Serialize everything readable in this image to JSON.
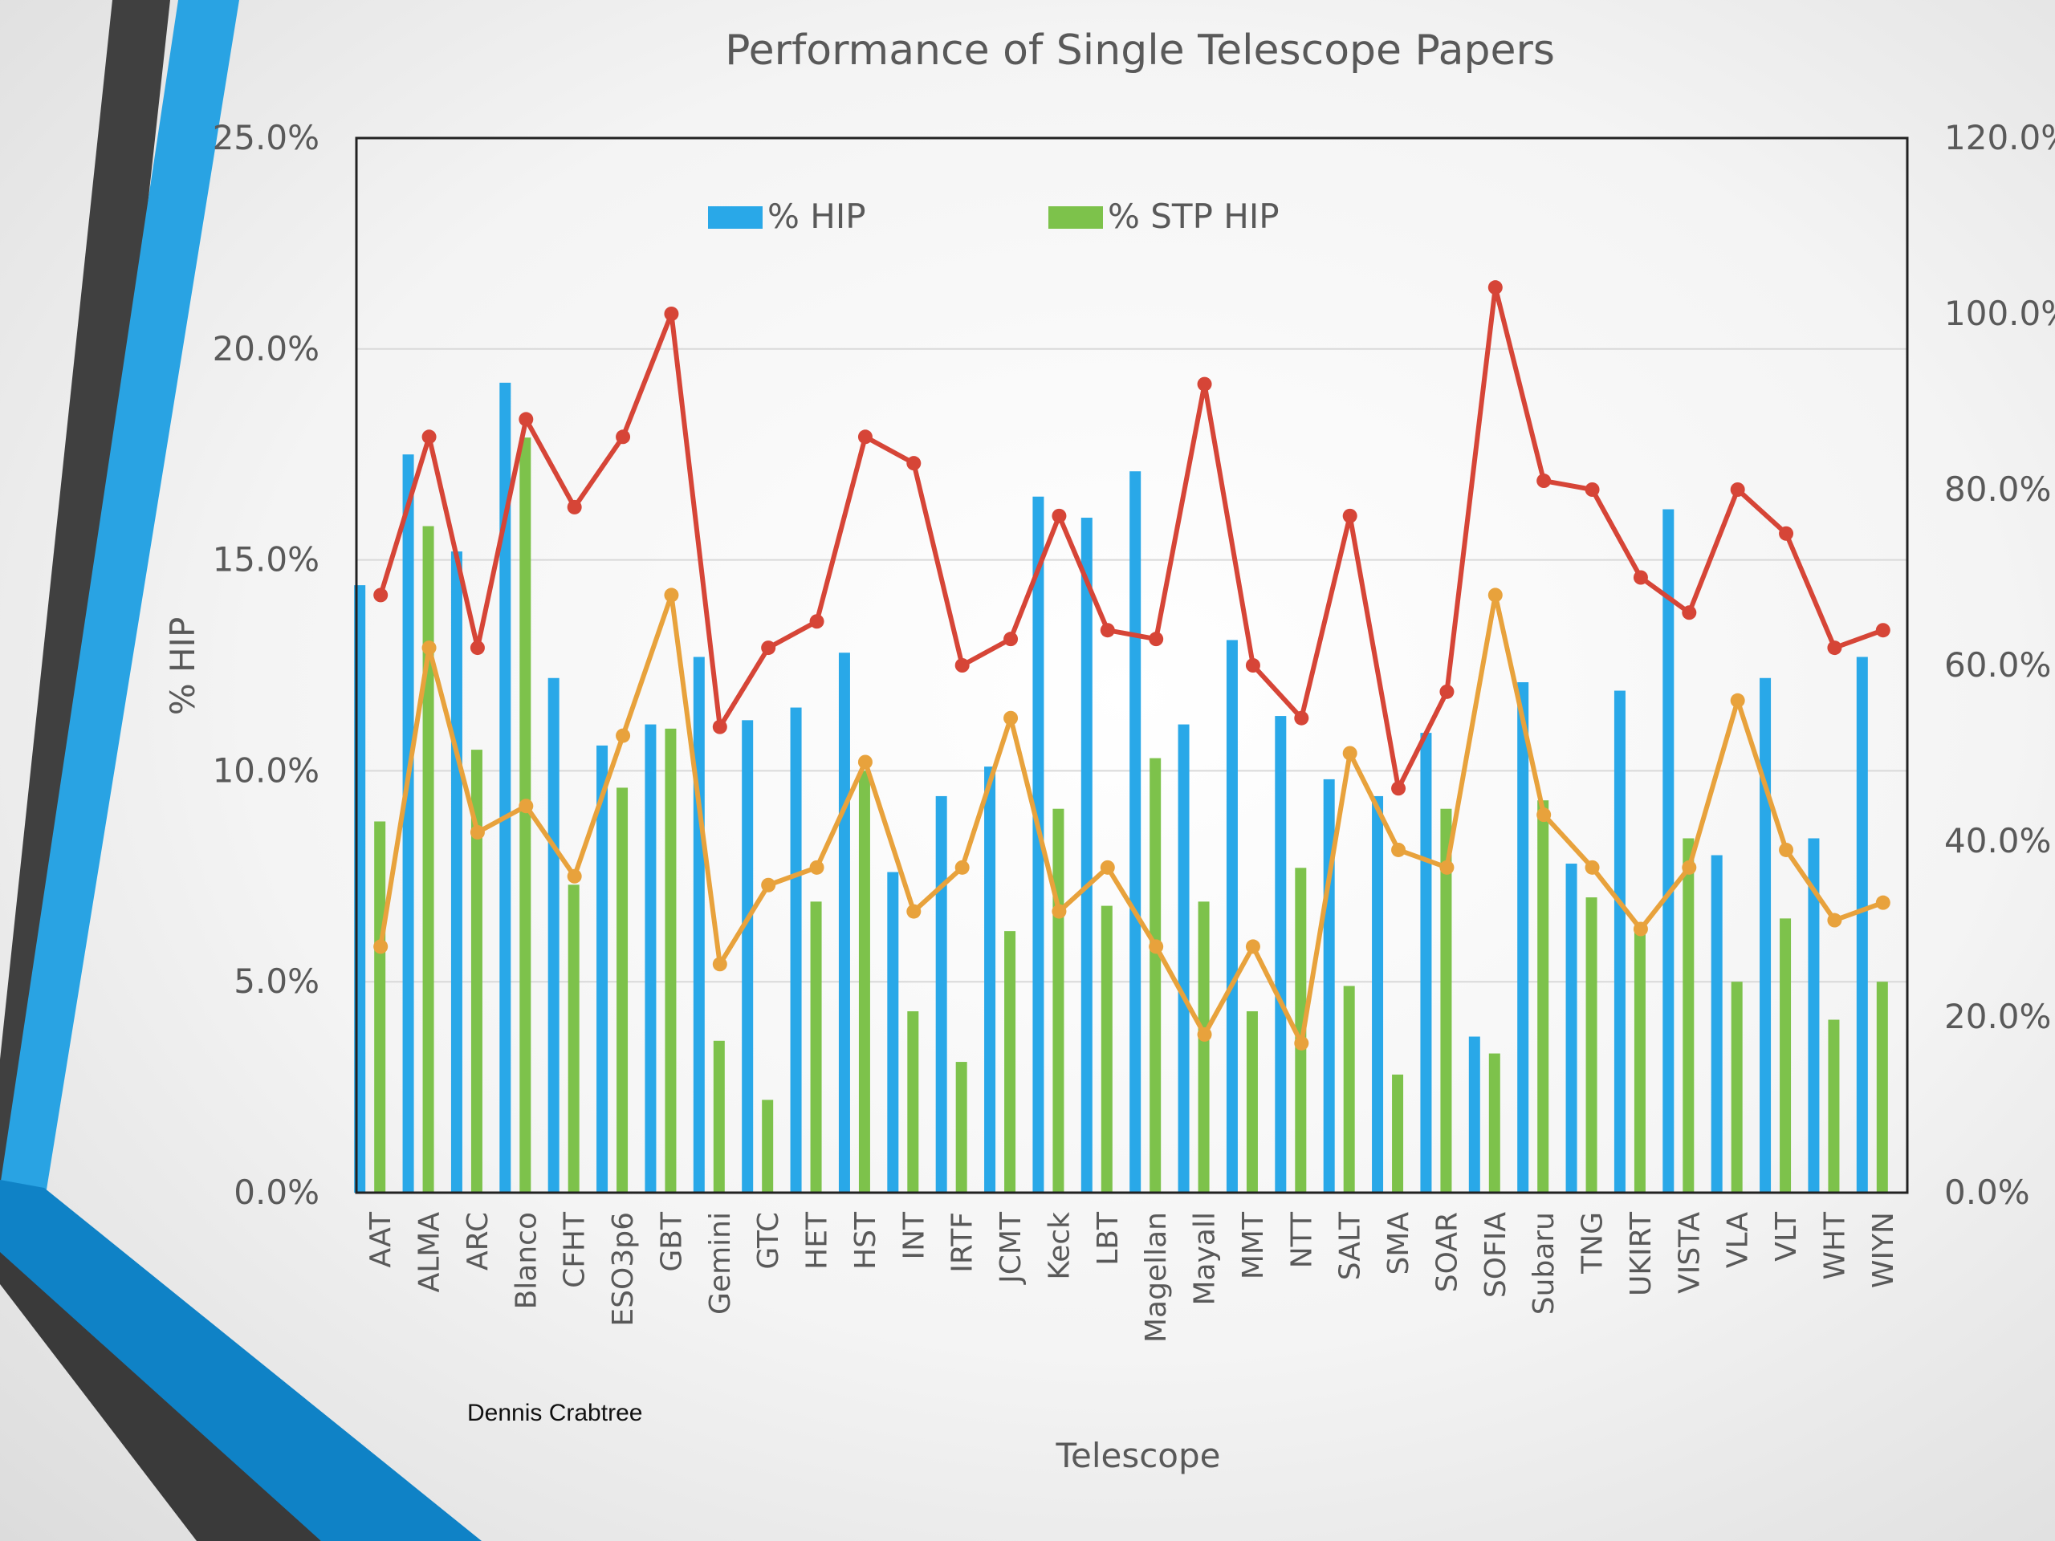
{
  "slide": {
    "author": "Dennis Crabtree",
    "colors": {
      "dark_stripe": "#404040",
      "blue_stripe": "#29a3e3",
      "blue_corner": "#0f82c6"
    }
  },
  "chart_data": {
    "type": "bar",
    "title": "Performance of Single Telescope Papers",
    "xlabel": "Telescope",
    "ylabel": "% HIP",
    "ylim": [
      0,
      25
    ],
    "y2lim": [
      0,
      120
    ],
    "yticks": [
      "0.0%",
      "5.0%",
      "10.0%",
      "15.0%",
      "20.0%",
      "25.0%"
    ],
    "y2ticks": [
      "0.0%",
      "20.0%",
      "40.0%",
      "60.0%",
      "80.0%",
      "100.0%",
      "120.0%"
    ],
    "grid": true,
    "legend": "top",
    "categories": [
      "AAT",
      "ALMA",
      "ARC",
      "Blanco",
      "CFHT",
      "ESO3p6",
      "GBT",
      "Gemini",
      "GTC",
      "HET",
      "HST",
      "INT",
      "IRTF",
      "JCMT",
      "Keck",
      "LBT",
      "Magellan",
      "Mayall",
      "MMT",
      "NTT",
      "SALT",
      "SMA",
      "SOAR",
      "SOFIA",
      "Subaru",
      "TNG",
      "UKIRT",
      "VISTA",
      "VLA",
      "VLT",
      "WHT",
      "WIYN"
    ],
    "series": [
      {
        "name": "% HIP",
        "type": "bar",
        "axis": "left",
        "color": "#29a8e8",
        "values": [
          14.4,
          17.5,
          15.2,
          19.2,
          12.2,
          10.6,
          11.1,
          12.7,
          11.2,
          11.5,
          12.8,
          7.6,
          9.4,
          10.1,
          16.5,
          16.0,
          17.1,
          11.1,
          13.1,
          11.3,
          9.8,
          9.4,
          10.9,
          3.7,
          12.1,
          7.8,
          11.9,
          16.2,
          8.0,
          12.2,
          8.4,
          12.7
        ]
      },
      {
        "name": "% STP HIP",
        "type": "bar",
        "axis": "left",
        "color": "#7dc24b",
        "values": [
          8.8,
          15.8,
          10.5,
          17.9,
          7.3,
          9.6,
          11.0,
          3.6,
          2.2,
          6.9,
          10.0,
          4.3,
          3.1,
          6.2,
          9.1,
          6.8,
          10.3,
          6.9,
          4.3,
          7.7,
          4.9,
          2.8,
          9.1,
          3.3,
          9.3,
          7.0,
          6.2,
          8.4,
          5.0,
          6.5,
          4.1,
          5.0
        ]
      },
      {
        "type": "line",
        "axis": "right",
        "color": "#d64537",
        "values": [
          68,
          86,
          62,
          88,
          78,
          86,
          100,
          53,
          62,
          65,
          86,
          83,
          60,
          63,
          77,
          64,
          63,
          92,
          60,
          54,
          77,
          46,
          57,
          103,
          81,
          80,
          70,
          66,
          80,
          75,
          62,
          64
        ]
      },
      {
        "type": "line",
        "axis": "right",
        "color": "#e8a23c",
        "values": [
          28,
          62,
          41,
          44,
          36,
          52,
          68,
          26,
          35,
          37,
          49,
          32,
          37,
          54,
          32,
          37,
          28,
          18,
          28,
          17,
          50,
          39,
          37,
          68,
          43,
          37,
          30,
          37,
          56,
          39,
          31,
          33
        ]
      }
    ]
  }
}
